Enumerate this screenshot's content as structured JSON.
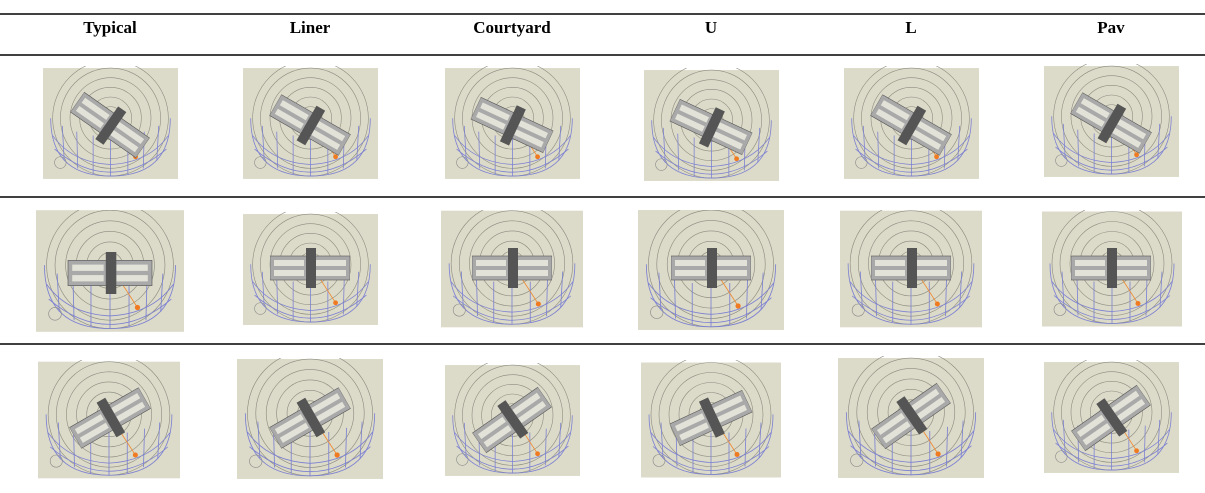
{
  "header": [
    "Typical",
    "Liner",
    "Courtyard",
    "U",
    "L",
    "Pav"
  ]
}
